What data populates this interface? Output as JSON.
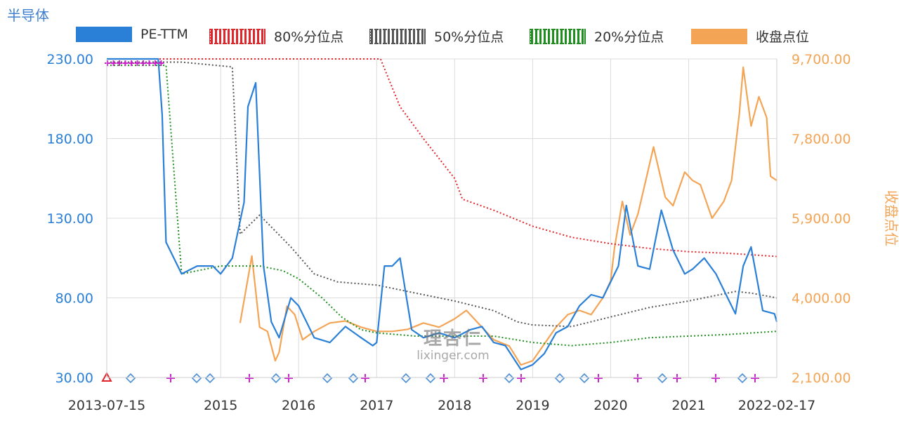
{
  "title": "半导体",
  "legend": [
    {
      "name": "PE-TTM",
      "color": "#2a7fd6",
      "style": "solid"
    },
    {
      "name": "80%分位点",
      "color": "#e0262a",
      "style": "dotted"
    },
    {
      "name": "50%分位点",
      "color": "#555555",
      "style": "dotted"
    },
    {
      "name": "20%分位点",
      "color": "#1e8f1e",
      "style": "dotted"
    },
    {
      "name": "收盘点位",
      "color": "#f3a455",
      "style": "solid"
    }
  ],
  "watermark": {
    "brand": "理杏仁",
    "url": "lixinger.com"
  },
  "chart_data": {
    "type": "line",
    "title": "半导体",
    "x_range": [
      "2013-07-15",
      "2022-02-17"
    ],
    "x_ticks": [
      "2013-07-15",
      "2015",
      "2016",
      "2017",
      "2018",
      "2019",
      "2020",
      "2021",
      "2022-02-17"
    ],
    "y_left": {
      "label": "",
      "range": [
        30,
        230
      ],
      "ticks": [
        "30.00",
        "80.00",
        "130.00",
        "180.00",
        "230.00"
      ]
    },
    "y_right": {
      "label": "收盘点位",
      "range": [
        2100,
        9700
      ],
      "ticks": [
        "2,100.00",
        "4,000.00",
        "5,900.00",
        "7,800.00",
        "9,700.00"
      ]
    },
    "grid": true,
    "legend_position": "top",
    "series": [
      {
        "name": "PE-TTM",
        "axis": "left",
        "x": [
          2013.54,
          2013.8,
          2014.2,
          2014.25,
          2014.3,
          2014.5,
          2014.7,
          2014.9,
          2015.0,
          2015.15,
          2015.3,
          2015.35,
          2015.45,
          2015.55,
          2015.65,
          2015.75,
          2015.9,
          2016.0,
          2016.2,
          2016.4,
          2016.6,
          2016.8,
          2016.95,
          2017.0,
          2017.1,
          2017.2,
          2017.3,
          2017.45,
          2017.6,
          2017.8,
          2018.0,
          2018.2,
          2018.35,
          2018.5,
          2018.65,
          2018.85,
          2019.0,
          2019.15,
          2019.3,
          2019.45,
          2019.6,
          2019.75,
          2019.9,
          2020.1,
          2020.2,
          2020.35,
          2020.5,
          2020.65,
          2020.8,
          2020.95,
          2021.05,
          2021.2,
          2021.35,
          2021.5,
          2021.6,
          2021.7,
          2021.8,
          2021.95,
          2022.1,
          2022.13
        ],
        "values": [
          230,
          230,
          230,
          195,
          115,
          95,
          100,
          100,
          95,
          105,
          140,
          200,
          215,
          100,
          65,
          55,
          80,
          75,
          55,
          52,
          62,
          55,
          50,
          52,
          100,
          100,
          105,
          60,
          55,
          58,
          55,
          60,
          62,
          52,
          50,
          35,
          38,
          45,
          58,
          62,
          75,
          82,
          80,
          100,
          138,
          100,
          98,
          135,
          110,
          95,
          98,
          105,
          95,
          80,
          70,
          100,
          112,
          72,
          70,
          65
        ],
        "color": "#2a7fd6"
      },
      {
        "name": "80%分位点",
        "axis": "left",
        "x": [
          2013.54,
          2017.05,
          2017.3,
          2017.6,
          2018.0,
          2018.1,
          2018.5,
          2019.0,
          2019.5,
          2020.0,
          2020.5,
          2021.0,
          2021.5,
          2022.13
        ],
        "values": [
          230,
          230,
          200,
          180,
          155,
          142,
          135,
          125,
          118,
          114,
          111,
          109,
          108,
          106
        ],
        "color": "#e0262a"
      },
      {
        "name": "50%分位点",
        "axis": "left",
        "x": [
          2013.54,
          2014.4,
          2014.5,
          2015.15,
          2015.25,
          2015.5,
          2015.9,
          2016.2,
          2016.5,
          2017.0,
          2017.5,
          2018.0,
          2018.5,
          2018.8,
          2019.0,
          2019.5,
          2020.0,
          2020.5,
          2021.0,
          2021.3,
          2021.6,
          2021.8,
          2022.13
        ],
        "values": [
          228,
          228,
          228,
          225,
          120,
          132,
          112,
          95,
          90,
          88,
          83,
          78,
          72,
          65,
          63,
          62,
          68,
          74,
          78,
          81,
          84,
          83,
          80
        ],
        "color": "#555555"
      },
      {
        "name": "20%分位点",
        "axis": "left",
        "x": [
          2013.54,
          2014.0,
          2014.3,
          2014.5,
          2015.0,
          2015.3,
          2015.5,
          2015.8,
          2016.0,
          2016.3,
          2016.55,
          2016.8,
          2017.0,
          2017.5,
          2018.0,
          2018.5,
          2019.0,
          2019.5,
          2020.0,
          2020.5,
          2021.0,
          2021.5,
          2022.13
        ],
        "values": [
          226,
          226,
          226,
          95,
          100,
          100,
          100,
          97,
          92,
          80,
          68,
          60,
          58,
          56,
          56,
          56,
          52,
          50,
          52,
          55,
          56,
          57,
          59
        ],
        "color": "#1e8f1e"
      },
      {
        "name": "收盘点位",
        "axis": "right",
        "x": [
          2015.25,
          2015.4,
          2015.5,
          2015.6,
          2015.7,
          2015.75,
          2015.85,
          2015.95,
          2016.05,
          2016.2,
          2016.4,
          2016.6,
          2016.8,
          2017.0,
          2017.2,
          2017.4,
          2017.6,
          2017.8,
          2018.0,
          2018.15,
          2018.3,
          2018.5,
          2018.7,
          2018.85,
          2019.0,
          2019.15,
          2019.3,
          2019.45,
          2019.6,
          2019.75,
          2019.9,
          2020.0,
          2020.05,
          2020.15,
          2020.25,
          2020.35,
          2020.5,
          2020.55,
          2020.7,
          2020.8,
          2020.95,
          2021.05,
          2021.15,
          2021.3,
          2021.45,
          2021.55,
          2021.65,
          2021.7,
          2021.8,
          2021.9,
          2022.0,
          2022.05,
          2022.13
        ],
        "values": [
          3400,
          5000,
          3300,
          3200,
          2500,
          2700,
          3800,
          3600,
          3000,
          3200,
          3400,
          3450,
          3300,
          3200,
          3200,
          3250,
          3400,
          3300,
          3500,
          3700,
          3400,
          3000,
          2850,
          2400,
          2500,
          2900,
          3300,
          3600,
          3700,
          3600,
          4000,
          4400,
          5200,
          6300,
          5500,
          6000,
          7200,
          7600,
          6400,
          6200,
          7000,
          6800,
          6700,
          5900,
          6300,
          6800,
          8400,
          9500,
          8100,
          8800,
          8300,
          6900,
          6800
        ],
        "color": "#f3a455"
      }
    ]
  }
}
